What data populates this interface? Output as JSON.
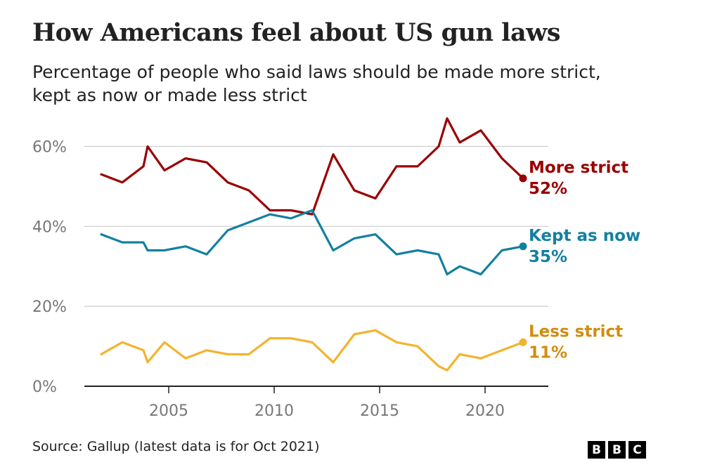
{
  "title": "How Americans feel about US gun laws",
  "subtitle": "Percentage of people who said laws should be made more strict, kept as now or made less strict",
  "source": "Source: Gallup (latest data is for Oct 2021)",
  "logo": {
    "letters": [
      "B",
      "B",
      "C"
    ]
  },
  "chart_data": {
    "type": "line",
    "title": "How Americans feel about US gun laws",
    "subtitle": "Percentage of people who said laws should be made more strict, kept as now or made less strict",
    "xlabel": "",
    "ylabel": "",
    "xlim": [
      2001,
      2023
    ],
    "ylim": [
      0,
      65
    ],
    "xticks": [
      2005,
      2010,
      2015,
      2020
    ],
    "xtick_labels": [
      "2005",
      "2010",
      "2015",
      "2020"
    ],
    "yticks": [
      0,
      20,
      40,
      60
    ],
    "ytick_labels": [
      "0%",
      "20%",
      "40%",
      "60%"
    ],
    "grid": "horizontal",
    "legend": "end-labels",
    "x": [
      2001.8,
      2002.8,
      2003.8,
      2004.0,
      2004.8,
      2005.8,
      2006.8,
      2007.8,
      2008.8,
      2009.8,
      2010.8,
      2011.8,
      2012.8,
      2013.8,
      2014.8,
      2015.8,
      2016.8,
      2017.8,
      2018.2,
      2018.8,
      2019.8,
      2020.8,
      2021.8
    ],
    "series": [
      {
        "name": "More strict",
        "end_label": "More strict",
        "end_value_label": "52%",
        "color": "#990000",
        "values": [
          53,
          51,
          55,
          60,
          54,
          57,
          56,
          51,
          49,
          44,
          44,
          43,
          58,
          49,
          47,
          55,
          55,
          60,
          67,
          61,
          64,
          57,
          52
        ]
      },
      {
        "name": "Kept as now",
        "end_label": "Kept as now",
        "end_value_label": "35%",
        "color": "#1380A1",
        "values": [
          38,
          36,
          36,
          34,
          34,
          35,
          33,
          39,
          41,
          43,
          42,
          44,
          34,
          37,
          38,
          33,
          34,
          33,
          28,
          30,
          28,
          34,
          35
        ]
      },
      {
        "name": "Less strict",
        "end_label": "Less strict",
        "end_value_label": "11%",
        "color": "#F4B32D",
        "values": [
          8,
          11,
          9,
          6,
          11,
          7,
          9,
          8,
          8,
          12,
          12,
          11,
          6,
          13,
          14,
          11,
          10,
          5,
          4,
          8,
          7,
          9,
          11
        ]
      }
    ]
  },
  "colors": {
    "axis": "#222222",
    "grid": "#cccccc",
    "tick_text": "#777777",
    "label_more": "#990000",
    "label_kept": "#1380A1",
    "label_less": "#d08d10"
  }
}
